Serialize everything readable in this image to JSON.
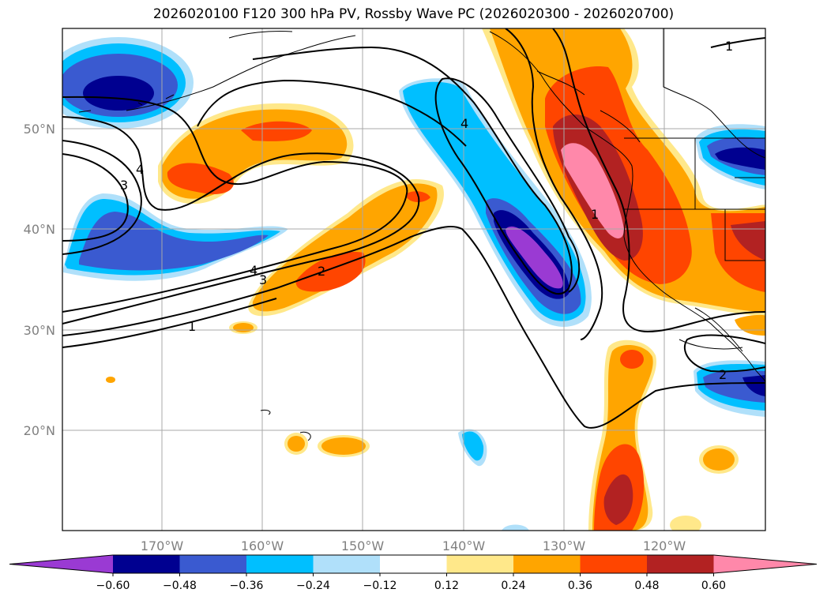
{
  "title": "2026020100 F120 300 hPa PV, Rossby Wave PC (2026020300 - 2026020700)",
  "map": {
    "lon_ticks": [
      "170°W",
      "160°W",
      "150°W",
      "140°W",
      "130°W",
      "120°W"
    ],
    "lat_ticks": [
      "50°N",
      "40°N",
      "30°N",
      "20°N"
    ],
    "grid": true,
    "contour_labels": [
      "1",
      "4",
      "3",
      "4",
      "3",
      "2",
      "1",
      "4",
      "1",
      "2"
    ]
  },
  "colorbar": {
    "ticks": [
      "−0.60",
      "−0.48",
      "−0.36",
      "−0.24",
      "−0.12",
      "0.12",
      "0.24",
      "0.36",
      "0.48",
      "0.60"
    ],
    "colors": [
      "#9a3ad3",
      "#000090",
      "#3a5ad0",
      "#00bfff",
      "#b0e0fa",
      "#ffffff",
      "#ffe88a",
      "#ffa500",
      "#ff4500",
      "#b22222",
      "#ff88aa"
    ],
    "extend": "both"
  }
}
